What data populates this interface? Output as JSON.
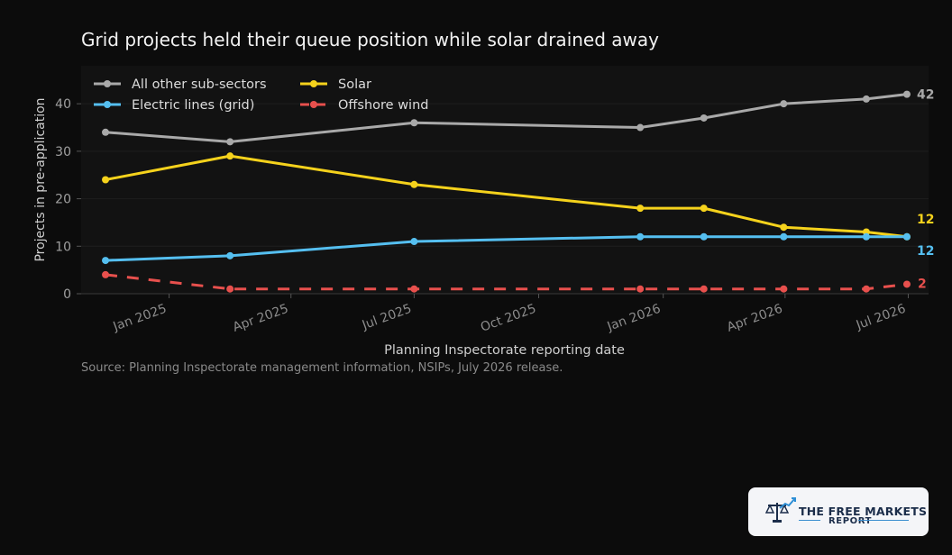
{
  "chart_data": {
    "type": "line",
    "title": "Grid projects held their queue position while solar drained away",
    "xlabel": "Planning Inspectorate reporting date",
    "ylabel": "Projects in pre-application",
    "x_dates": [
      "2024-11-15",
      "2025-02-15",
      "2025-07-01",
      "2025-12-15",
      "2026-01-31",
      "2026-03-31",
      "2026-05-31",
      "2026-06-30"
    ],
    "x_ticks": [
      {
        "date": "2025-01-01",
        "label": "Jan 2025"
      },
      {
        "date": "2025-04-01",
        "label": "Apr 2025"
      },
      {
        "date": "2025-07-01",
        "label": "Jul 2025"
      },
      {
        "date": "2025-10-01",
        "label": "Oct 2025"
      },
      {
        "date": "2026-01-01",
        "label": "Jan 2026"
      },
      {
        "date": "2026-04-01",
        "label": "Apr 2026"
      },
      {
        "date": "2026-07-01",
        "label": "Jul 2026"
      }
    ],
    "y_ticks": [
      0,
      10,
      20,
      30,
      40
    ],
    "ylim": [
      0,
      48
    ],
    "xlim": [
      "2024-10-28",
      "2026-07-16"
    ],
    "grid": true,
    "legend_position": "top-left",
    "series": [
      {
        "name": "All other sub-sectors",
        "values": [
          34,
          32,
          36,
          35,
          37,
          40,
          41,
          42
        ],
        "color": "#a9a9a9",
        "dashed": false,
        "end_label": "42"
      },
      {
        "name": "Solar",
        "values": [
          24,
          29,
          23,
          18,
          18,
          14,
          13,
          12
        ],
        "color": "#f5d21c",
        "dashed": false,
        "end_label": "12"
      },
      {
        "name": "Electric lines (grid)",
        "values": [
          7,
          8,
          11,
          12,
          12,
          12,
          12,
          12
        ],
        "color": "#55bff0",
        "dashed": false,
        "end_label": "12"
      },
      {
        "name": "Offshore wind",
        "values": [
          4,
          1,
          1,
          1,
          1,
          1,
          1,
          2
        ],
        "color": "#e8504d",
        "dashed": true,
        "end_label": "2"
      }
    ]
  },
  "source_note": "Source: Planning Inspectorate management information, NSIPs, July 2026 release.",
  "logo": {
    "line1": "THE FREE MARKETS",
    "line2": "REPORT",
    "icon": "scales-of-justice-icon"
  }
}
